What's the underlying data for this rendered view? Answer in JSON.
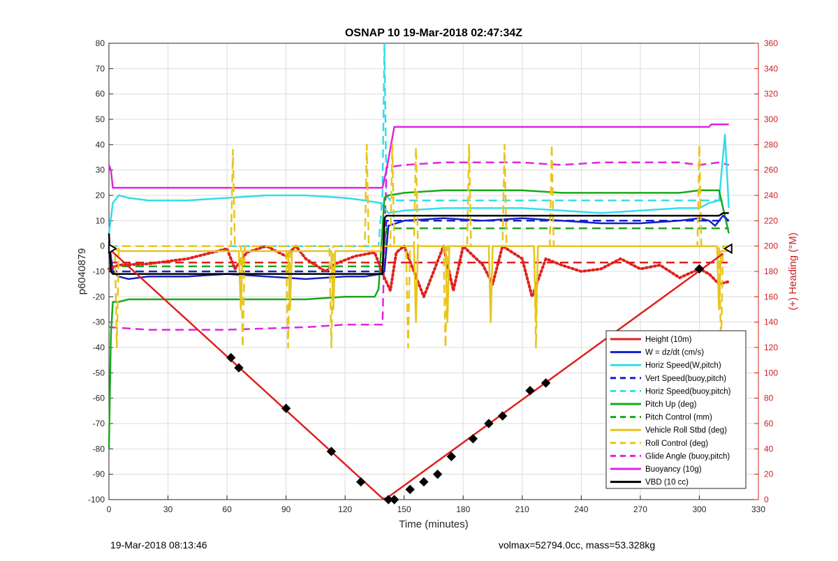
{
  "chart_data": {
    "type": "line",
    "title": "OSNAP 10 19-Mar-2018 02:47:34Z",
    "xlabel": "Time (minutes)",
    "ylabel": "p6040879",
    "y2label": "(+) Heading (°M)",
    "xlim": [
      0,
      330
    ],
    "ylim": [
      -100,
      80
    ],
    "y2lim": [
      0,
      360
    ],
    "xticks": [
      0,
      30,
      60,
      90,
      120,
      150,
      180,
      210,
      240,
      270,
      300,
      330
    ],
    "yticks": [
      -100,
      -90,
      -80,
      -70,
      -60,
      -50,
      -40,
      -30,
      -20,
      -10,
      0,
      10,
      20,
      30,
      40,
      50,
      60,
      70,
      80
    ],
    "y2ticks": [
      0,
      20,
      40,
      60,
      80,
      100,
      120,
      140,
      160,
      180,
      200,
      220,
      240,
      260,
      280,
      300,
      320,
      340,
      360
    ],
    "grid": true,
    "legend_position": "bottom-right",
    "series": [
      {
        "name": "Height (10m)",
        "color": "#e0201c",
        "style": "solid",
        "axis": "left",
        "x": [
          0,
          139,
          141,
          312
        ],
        "y": [
          -1,
          -99.5,
          -99.5,
          -3
        ]
      },
      {
        "name": "W = dz/dt (cm/s)",
        "color": "#1620c8",
        "style": "solid",
        "axis": "left",
        "x": [
          0,
          2,
          5,
          10,
          20,
          40,
          60,
          80,
          100,
          120,
          130,
          138,
          140,
          142,
          150,
          170,
          190,
          210,
          230,
          250,
          270,
          290,
          300,
          305,
          308,
          312,
          315
        ],
        "y": [
          2,
          -10,
          -12,
          -13,
          -12,
          -12,
          -11,
          -12,
          -13,
          -12,
          -12,
          -11,
          -10,
          8,
          10,
          11,
          10,
          11,
          10,
          9,
          9,
          10,
          11,
          10,
          8,
          12,
          10
        ]
      },
      {
        "name": "Horiz Speed(W,pitch)",
        "color": "#33dde8",
        "style": "solid",
        "axis": "left",
        "x": [
          0,
          2,
          5,
          10,
          20,
          40,
          60,
          80,
          100,
          120,
          130,
          138,
          140,
          142,
          150,
          170,
          190,
          210,
          230,
          250,
          270,
          290,
          300,
          305,
          310,
          313,
          315
        ],
        "y": [
          5,
          17,
          20,
          19,
          18,
          18,
          19,
          20,
          20,
          19,
          18,
          17,
          15,
          13,
          14,
          15,
          15,
          15,
          14,
          13,
          14,
          15,
          15,
          17,
          18,
          44,
          15
        ]
      },
      {
        "name": "Vert Speed(buoy,pitch)",
        "color": "#1620c8",
        "style": "dashed",
        "axis": "left",
        "x": [
          0,
          139,
          141,
          315
        ],
        "y": [
          -10,
          -10,
          10,
          10
        ]
      },
      {
        "name": "Horiz Speed(buoy,pitch)",
        "color": "#33dde8",
        "style": "dashed",
        "axis": "left",
        "x": [
          0,
          137,
          139,
          140,
          141,
          143,
          315
        ],
        "y": [
          0,
          0,
          20,
          80,
          20,
          18,
          18
        ]
      },
      {
        "name": "Pitch Up (deg)",
        "color": "#1aa81a",
        "style": "solid",
        "axis": "left",
        "x": [
          0,
          1,
          2,
          5,
          10,
          40,
          70,
          100,
          120,
          135,
          137,
          140,
          142,
          150,
          170,
          190,
          210,
          230,
          250,
          270,
          290,
          300,
          310,
          315
        ],
        "y": [
          -80,
          -35,
          -22,
          -22,
          -21,
          -21,
          -21,
          -21,
          -20,
          -20,
          -17,
          19,
          20,
          21,
          22,
          22,
          22,
          21,
          21,
          21,
          21,
          22,
          22,
          5
        ]
      },
      {
        "name": "Pitch Control (mm)",
        "color": "#1aa81a",
        "style": "dashed",
        "axis": "left",
        "x": [
          0,
          139,
          141,
          315
        ],
        "y": [
          -8,
          -8,
          7,
          7
        ]
      },
      {
        "name": "Vehicle Roll Stbd (deg)",
        "color": "#e8c51c",
        "style": "solid",
        "axis": "left",
        "x": [
          0,
          5,
          66,
          67,
          68,
          91,
          92,
          93,
          113,
          114,
          115,
          138,
          139,
          141,
          155,
          156,
          157,
          171,
          172,
          173,
          193,
          194,
          195,
          216,
          217,
          218,
          300,
          309,
          310,
          311,
          315
        ],
        "y": [
          0,
          -2,
          -2,
          -25,
          -2,
          -2,
          -25,
          -2,
          -2,
          -25,
          -2,
          -2,
          0,
          0,
          0,
          -30,
          0,
          0,
          -30,
          0,
          0,
          -30,
          0,
          0,
          -30,
          0,
          0,
          0,
          -25,
          -2,
          -2
        ]
      },
      {
        "name": "Roll Control (deg)",
        "color": "#e8c51c",
        "style": "dashed",
        "axis": "left",
        "x": [
          0,
          3,
          4,
          5,
          62,
          63,
          64,
          67,
          68,
          69,
          90,
          91,
          92,
          112,
          113,
          114,
          130,
          131,
          132,
          140,
          143,
          144,
          145,
          151,
          152,
          153,
          155,
          156,
          157,
          170,
          171,
          172,
          182,
          183,
          184,
          200,
          201,
          202,
          216,
          217,
          218,
          224,
          225,
          226,
          299,
          300,
          301,
          310,
          311,
          312,
          315
        ],
        "y": [
          0,
          0,
          -40,
          0,
          0,
          38,
          0,
          0,
          -40,
          0,
          0,
          -40,
          0,
          0,
          -40,
          0,
          0,
          40,
          0,
          0,
          0,
          40,
          0,
          0,
          -40,
          0,
          0,
          39,
          0,
          0,
          -40,
          0,
          0,
          40,
          0,
          0,
          40,
          0,
          0,
          -40,
          0,
          0,
          40,
          0,
          0,
          40,
          0,
          0,
          -40,
          0,
          0
        ]
      },
      {
        "name": "Glide Angle (buoy,pitch)",
        "color": "#e024e0",
        "style": "dashed",
        "axis": "left",
        "x": [
          0,
          20,
          60,
          100,
          120,
          139,
          141,
          150,
          170,
          190,
          210,
          230,
          250,
          270,
          290,
          300,
          310,
          315
        ],
        "y": [
          -32,
          -33,
          -33,
          -32,
          -31,
          -31,
          31,
          32,
          33,
          33,
          33,
          32,
          33,
          33,
          33,
          32,
          33,
          32
        ]
      },
      {
        "name": "Buoyancy (10g)",
        "color": "#e024e0",
        "style": "solid",
        "axis": "left",
        "x": [
          0,
          1,
          2,
          139,
          141,
          145,
          200,
          260,
          305,
          306,
          315
        ],
        "y": [
          32,
          30,
          23,
          23,
          30,
          47,
          47,
          47,
          47,
          48,
          48
        ]
      },
      {
        "name": "VBD (10 cc)",
        "color": "#000000",
        "style": "solid",
        "axis": "left",
        "x": [
          0,
          1,
          2,
          5,
          139,
          140,
          141,
          300,
          310,
          312,
          315
        ],
        "y": [
          5,
          -10,
          -11,
          -11,
          -11,
          11,
          12,
          12,
          12,
          13,
          13
        ]
      },
      {
        "name": "Heading",
        "color": "#e0201c",
        "style": "dotted",
        "axis": "right",
        "x": [
          0,
          5,
          20,
          40,
          60,
          62,
          64,
          70,
          80,
          90,
          95,
          100,
          110,
          115,
          125,
          135,
          140,
          143,
          146,
          150,
          155,
          160,
          170,
          175,
          180,
          190,
          195,
          200,
          210,
          215,
          222,
          230,
          240,
          250,
          260,
          270,
          280,
          290,
          300,
          305,
          310,
          315
        ],
        "y": [
          182,
          185,
          186,
          190,
          198,
          190,
          182,
          195,
          200,
          192,
          200,
          190,
          180,
          186,
          192,
          195,
          175,
          165,
          195,
          200,
          180,
          160,
          200,
          165,
          200,
          185,
          170,
          200,
          190,
          160,
          190,
          185,
          180,
          182,
          190,
          182,
          185,
          175,
          182,
          178,
          170,
          172
        ]
      },
      {
        "name": "Heading desired",
        "color": "#e0201c",
        "style": "dashed",
        "axis": "right",
        "x": [
          0,
          315
        ],
        "y": [
          187,
          187
        ]
      }
    ],
    "markers": {
      "height_dives": {
        "x": [
          62,
          66,
          90,
          113,
          128,
          142,
          145,
          153,
          160,
          167,
          174,
          185,
          193,
          200,
          214,
          222,
          300
        ],
        "y": [
          -44,
          -48,
          -64,
          -81,
          -93,
          -100,
          -100,
          -96,
          -93,
          -90,
          -83,
          -76,
          -70,
          -67,
          -57,
          -54,
          -9
        ]
      }
    }
  },
  "footer": {
    "left": "19-Mar-2018 08:13:46",
    "right": "volmax=52794.0cc, mass=53.328kg"
  }
}
